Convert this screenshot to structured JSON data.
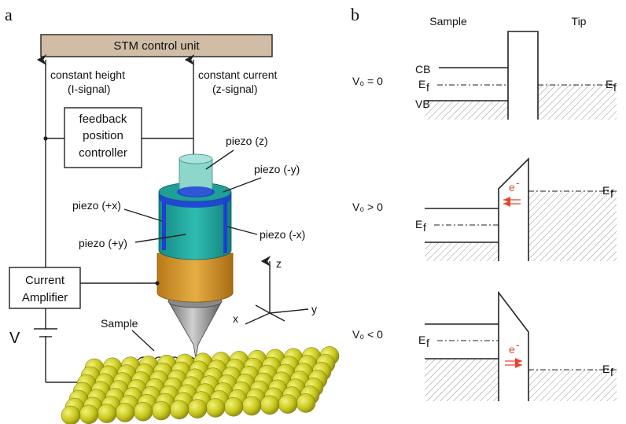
{
  "panels": {
    "a": "a",
    "b": "b"
  },
  "setup": {
    "control_unit": "STM control unit",
    "constant_height": "constant height",
    "i_signal": "(I-signal)",
    "constant_current": "constant current",
    "z_signal": "(z-signal)",
    "feedback": [
      "feedback",
      "position",
      "controller"
    ],
    "piezo_z": "piezo (z)",
    "piezo_neg_y": "piezo (-y)",
    "piezo_pos_x": "piezo (+x)",
    "piezo_pos_y": "piezo (+y)",
    "piezo_neg_x": "piezo (-x)",
    "current_amplifier": [
      "Current",
      "Amplifier"
    ],
    "voltage": "V",
    "sample": "Sample",
    "axes": {
      "z": "z",
      "x": "x",
      "y": "y"
    }
  },
  "energy": {
    "sample_header": "Sample",
    "tip_header": "Tip",
    "cases": [
      {
        "cond": "V₀ = 0"
      },
      {
        "cond": "V₀ > 0"
      },
      {
        "cond": "V₀ < 0"
      }
    ],
    "cb": "CB",
    "vb": "VB",
    "ef": "E",
    "ef_sub": "f",
    "electron": "e",
    "electron_sup": "-"
  },
  "colors": {
    "control_box": "#d1bca5",
    "piezo_top": "#8cd6cc",
    "piezo_body": "#1ba39a",
    "piezo_edge": "#1e3fd6",
    "amplifier_body": "#d99a2c",
    "tip": "#a6a6a6",
    "atom": "#c9c81e",
    "electron_arrow": "#e8442b"
  }
}
